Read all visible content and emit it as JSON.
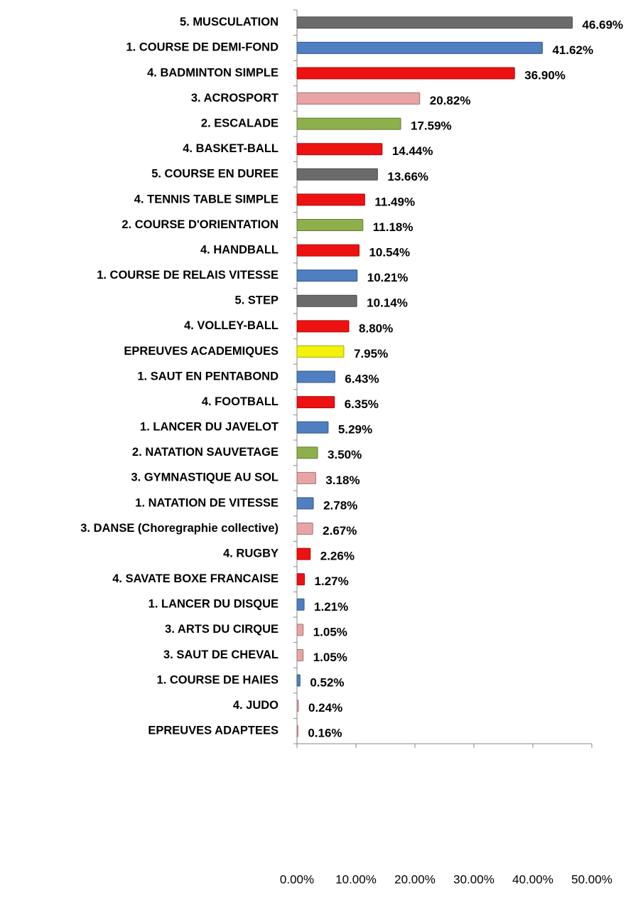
{
  "chart_data": {
    "type": "bar",
    "orientation": "horizontal",
    "categories": [
      "5. MUSCULATION",
      "1. COURSE DE DEMI-FOND",
      "4. BADMINTON SIMPLE",
      "3. ACROSPORT",
      "2. ESCALADE",
      "4. BASKET-BALL",
      "5. COURSE EN DUREE",
      "4. TENNIS TABLE SIMPLE",
      "2. COURSE D'ORIENTATION",
      "4. HANDBALL",
      "1. COURSE DE RELAIS VITESSE",
      "5. STEP",
      "4. VOLLEY-BALL",
      "EPREUVES ACADEMIQUES",
      "1. SAUT EN PENTABOND",
      "4. FOOTBALL",
      "1. LANCER DU JAVELOT",
      "2. NATATION SAUVETAGE",
      "3. GYMNASTIQUE AU SOL",
      "1. NATATION DE VITESSE",
      "3. DANSE (Choregraphie collective)",
      "4. RUGBY",
      "4. SAVATE BOXE FRANCAISE",
      "1. LANCER DU DISQUE",
      "3. ARTS DU CIRQUE",
      "3. SAUT DE CHEVAL",
      "1. COURSE DE HAIES",
      "4. JUDO",
      "EPREUVES ADAPTEES"
    ],
    "values": [
      46.69,
      41.62,
      36.9,
      20.82,
      17.59,
      14.44,
      13.66,
      11.49,
      11.18,
      10.54,
      10.21,
      10.14,
      8.8,
      7.95,
      6.43,
      6.35,
      5.29,
      3.5,
      3.18,
      2.78,
      2.67,
      2.26,
      1.27,
      1.21,
      1.05,
      1.05,
      0.52,
      0.24,
      0.16
    ],
    "value_labels": [
      "46.69%",
      "41.62%",
      "36.90%",
      "20.82%",
      "17.59%",
      "14.44%",
      "13.66%",
      "11.49%",
      "11.18%",
      "10.54%",
      "10.21%",
      "10.14%",
      "8.80%",
      "7.95%",
      "6.43%",
      "6.35%",
      "5.29%",
      "3.50%",
      "3.18%",
      "2.78%",
      "2.67%",
      "2.26%",
      "1.27%",
      "1.21%",
      "1.05%",
      "1.05%",
      "0.52%",
      "0.24%",
      "0.16%"
    ],
    "colors": [
      "#6b6b6b",
      "#4f7fc0",
      "#ee1111",
      "#e8a4a4",
      "#8db04c",
      "#ee1111",
      "#6b6b6b",
      "#ee1111",
      "#8db04c",
      "#ee1111",
      "#4f7fc0",
      "#6b6b6b",
      "#ee1111",
      "#f2f20a",
      "#4f7fc0",
      "#ee1111",
      "#4f7fc0",
      "#8db04c",
      "#e8a4a4",
      "#4f7fc0",
      "#e8a4a4",
      "#ee1111",
      "#ee1111",
      "#4f7fc0",
      "#e8a4a4",
      "#e8a4a4",
      "#4f7fc0",
      "#e8a4a4",
      "#e8a4a4"
    ],
    "xlim": [
      0,
      50
    ],
    "xticks": [
      {
        "value": 0,
        "label": "0.00%"
      },
      {
        "value": 10,
        "label": "10.00%"
      },
      {
        "value": 20,
        "label": "20.00%"
      },
      {
        "value": 30,
        "label": "30.00%"
      },
      {
        "value": 40,
        "label": "40.00%"
      },
      {
        "value": 50,
        "label": "50.00%"
      }
    ]
  }
}
